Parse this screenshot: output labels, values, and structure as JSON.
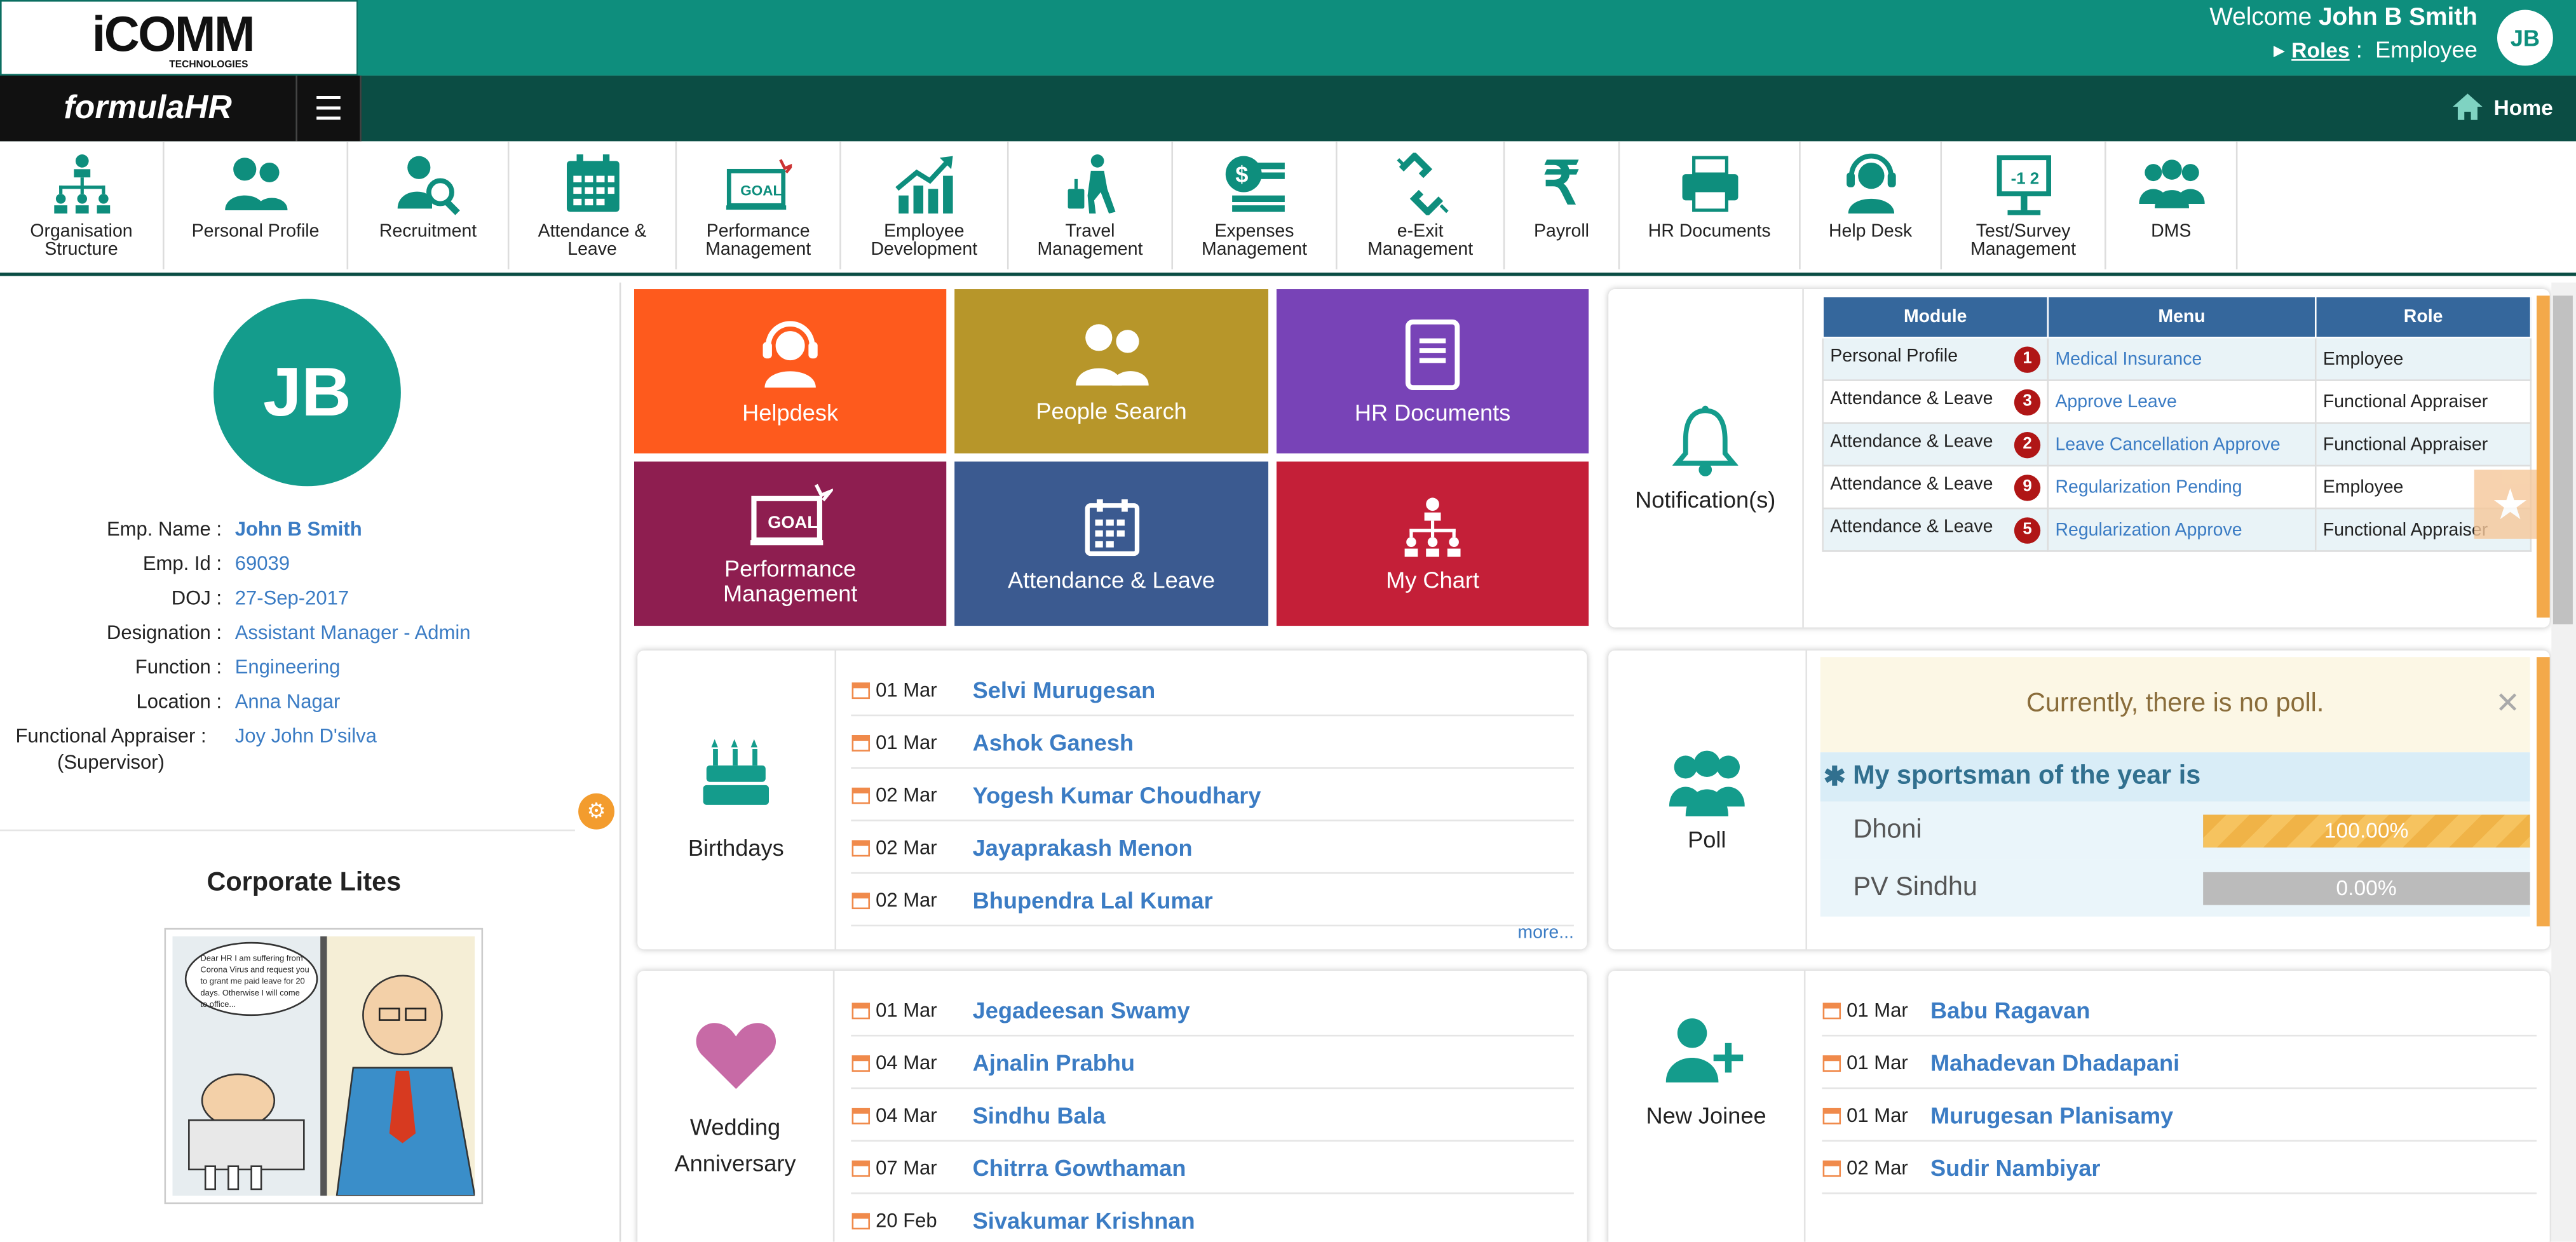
{
  "header": {
    "logo": "iCOMM",
    "logo_sub": "TECHNOLOGIES",
    "welcome_prefix": "Welcome",
    "user_name": "John B Smith",
    "roles_label": "Roles",
    "role_value": "Employee",
    "avatar_initials": "JB",
    "brand": "formulaHR",
    "home_label": "Home"
  },
  "modules": [
    {
      "label": "Organisation Structure",
      "icon": "org-structure-icon"
    },
    {
      "label": "Personal Profile",
      "icon": "people-icon"
    },
    {
      "label": "Recruitment",
      "icon": "user-search-icon"
    },
    {
      "label": "Attendance & Leave",
      "icon": "calendar-icon"
    },
    {
      "label": "Performance Management",
      "icon": "goal-board-icon"
    },
    {
      "label": "Employee Development",
      "icon": "growth-chart-icon"
    },
    {
      "label": "Travel Management",
      "icon": "traveller-icon"
    },
    {
      "label": "Expenses Management",
      "icon": "money-icon"
    },
    {
      "label": "e-Exit Management",
      "icon": "broken-link-icon"
    },
    {
      "label": "Payroll",
      "icon": "rupee-icon"
    },
    {
      "label": "HR Documents",
      "icon": "printer-icon"
    },
    {
      "label": "Help Desk",
      "icon": "headset-icon"
    },
    {
      "label": "Test/Survey Management",
      "icon": "whiteboard-icon"
    },
    {
      "label": "DMS",
      "icon": "group-icon"
    }
  ],
  "profile": {
    "initials": "JB",
    "fields": [
      {
        "key": "Emp. Name :",
        "value": "John B Smith"
      },
      {
        "key": "Emp. Id :",
        "value": "69039"
      },
      {
        "key": "DOJ :",
        "value": "27-Sep-2017"
      },
      {
        "key": "Designation :",
        "value": "Assistant Manager - Admin"
      },
      {
        "key": "Function :",
        "value": "Engineering"
      },
      {
        "key": "Location :",
        "value": "Anna Nagar"
      },
      {
        "key": "Functional Appraiser : (Supervisor)",
        "value": "Joy John D'silva"
      }
    ],
    "corporate_title": "Corporate Lites",
    "cartoon_text": "Dear HR I am suffering from Corona Virus and request you to grant me paid leave for 20 days. Otherwise I will come to office..."
  },
  "tiles": [
    {
      "label": "Helpdesk",
      "color": "#fe5a1d",
      "icon": "headset-icon"
    },
    {
      "label": "People Search",
      "color": "#b7962a",
      "icon": "people-icon"
    },
    {
      "label": "HR Documents",
      "color": "#7843b7",
      "icon": "document-icon"
    },
    {
      "label": "Performance Management",
      "color": "#8e1e50",
      "icon": "goal-board-icon"
    },
    {
      "label": "Attendance & Leave",
      "color": "#3b5a90",
      "icon": "calendar-icon"
    },
    {
      "label": "My Chart",
      "color": "#c41f38",
      "icon": "org-structure-icon"
    }
  ],
  "notifications": {
    "label": "Notification(s)",
    "headers": [
      "Module",
      "Menu",
      "Role"
    ],
    "rows": [
      {
        "module": "Personal Profile",
        "count": "1",
        "menu": "Medical Insurance",
        "role": "Employee"
      },
      {
        "module": "Attendance & Leave",
        "count": "3",
        "menu": "Approve Leave",
        "role": "Functional Appraiser"
      },
      {
        "module": "Attendance & Leave",
        "count": "2",
        "menu": "Leave Cancellation Approve",
        "role": "Functional Appraiser"
      },
      {
        "module": "Attendance & Leave",
        "count": "9",
        "menu": "Regularization Pending",
        "role": "Employee"
      },
      {
        "module": "Attendance & Leave",
        "count": "5",
        "menu": "Regularization Approve",
        "role": "Functional Appraiser"
      }
    ]
  },
  "birthdays": {
    "label": "Birthdays",
    "more": "more...",
    "items": [
      {
        "date": "01 Mar",
        "name": "Selvi Murugesan"
      },
      {
        "date": "01 Mar",
        "name": "Ashok Ganesh"
      },
      {
        "date": "02 Mar",
        "name": "Yogesh Kumar Choudhary"
      },
      {
        "date": "02 Mar",
        "name": "Jayaprakash Menon"
      },
      {
        "date": "02 Mar",
        "name": "Bhupendra Lal Kumar"
      }
    ]
  },
  "poll": {
    "label": "Poll",
    "no_poll": "Currently, there is no poll.",
    "question": "My sportsman of the year is",
    "options": [
      {
        "name": "Dhoni",
        "percent": 100,
        "text": "100.00%"
      },
      {
        "name": "PV Sindhu",
        "percent": 0,
        "text": "0.00%"
      }
    ]
  },
  "wedding": {
    "label_1": "Wedding",
    "label_2": "Anniversary",
    "items": [
      {
        "date": "01 Mar",
        "name": "Jegadeesan Swamy"
      },
      {
        "date": "04 Mar",
        "name": "Ajnalin Prabhu"
      },
      {
        "date": "04 Mar",
        "name": "Sindhu Bala"
      },
      {
        "date": "07 Mar",
        "name": "Chitrra Gowthaman"
      },
      {
        "date": "20 Feb",
        "name": "Sivakumar Krishnan"
      }
    ]
  },
  "new_joinee": {
    "label": "New Joinee",
    "items": [
      {
        "date": "01 Mar",
        "name": "Babu Ragavan"
      },
      {
        "date": "01 Mar",
        "name": "Mahadevan Dhadapani"
      },
      {
        "date": "01 Mar",
        "name": "Murugesan Planisamy"
      },
      {
        "date": "02 Mar",
        "name": "Sudir Nambiyar"
      }
    ]
  }
}
